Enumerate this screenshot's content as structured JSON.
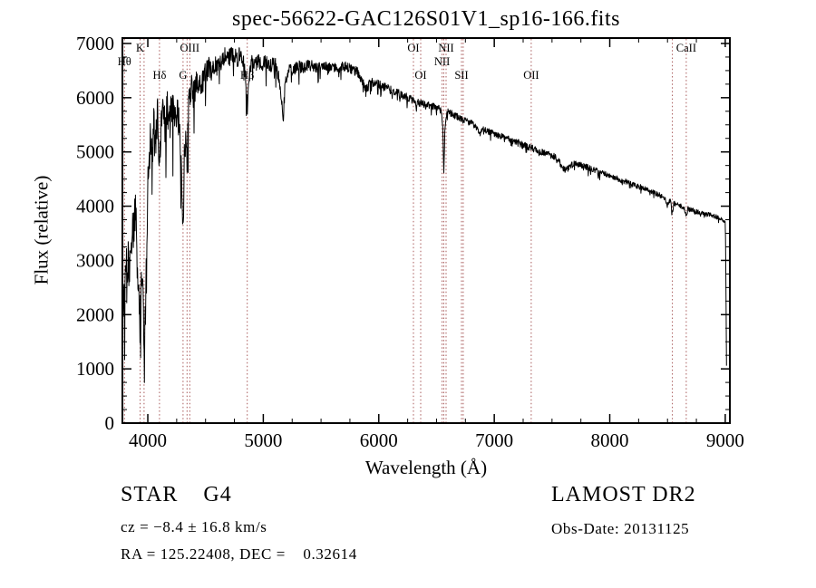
{
  "chart_data": {
    "type": "line",
    "title": "spec-56622-GAC126S01V1_sp16-166.fits",
    "xlabel": "Wavelength (Å)",
    "ylabel": "Flux (relative)",
    "xlim": [
      3780,
      9040
    ],
    "ylim": [
      0,
      7100
    ],
    "xticks": [
      4000,
      5000,
      6000,
      7000,
      8000,
      9000
    ],
    "yticks": [
      0,
      1000,
      2000,
      3000,
      4000,
      5000,
      6000,
      7000
    ],
    "grid": false,
    "colors": {
      "trace": "#000000",
      "marker_line": "#a85a5a",
      "frame": "#000000",
      "background": "#ffffff"
    },
    "noise_seed": 20131125,
    "marker_lines": [
      {
        "wavelength": 3798,
        "label": "Hθ",
        "row": 2
      },
      {
        "wavelength": 3933,
        "label": "K",
        "row": 1
      },
      {
        "wavelength": 3968
      },
      {
        "wavelength": 4101,
        "label": "Hδ",
        "row": 3
      },
      {
        "wavelength": 4305,
        "label": "G",
        "row": 3
      },
      {
        "wavelength": 4340
      },
      {
        "wavelength": 4363,
        "label": "OIII",
        "row": 1
      },
      {
        "wavelength": 4861,
        "label": "Hβ",
        "row": 3
      },
      {
        "wavelength": 6300,
        "label": "OI",
        "row": 1
      },
      {
        "wavelength": 6363,
        "label": "OI",
        "row": 3
      },
      {
        "wavelength": 6548,
        "label": "NII",
        "row": 2
      },
      {
        "wavelength": 6563
      },
      {
        "wavelength": 6583,
        "label": "NII",
        "row": 1
      },
      {
        "wavelength": 6716,
        "label": "SII",
        "row": 3
      },
      {
        "wavelength": 6731
      },
      {
        "wavelength": 7320,
        "label": "OII",
        "row": 3
      },
      {
        "wavelength": 8542
      },
      {
        "wavelength": 8662,
        "label": "CaII",
        "row": 1
      }
    ],
    "envelope_points": [
      [
        3780,
        2300
      ],
      [
        3788,
        2050
      ],
      [
        3796,
        2700
      ],
      [
        3804,
        2300
      ],
      [
        3812,
        3000
      ],
      [
        3820,
        2500
      ],
      [
        3830,
        3200
      ],
      [
        3840,
        2700
      ],
      [
        3850,
        3600
      ],
      [
        3860,
        3100
      ],
      [
        3870,
        3900
      ],
      [
        3880,
        3400
      ],
      [
        3890,
        4000
      ],
      [
        3900,
        3500
      ],
      [
        3910,
        2600
      ],
      [
        3920,
        2950
      ],
      [
        3933,
        1700
      ],
      [
        3944,
        3000
      ],
      [
        3956,
        2700
      ],
      [
        3968,
        1500
      ],
      [
        3978,
        1800
      ],
      [
        3988,
        2900
      ],
      [
        4000,
        4300
      ],
      [
        4012,
        4900
      ],
      [
        4025,
        5300
      ],
      [
        4040,
        5000
      ],
      [
        4055,
        5600
      ],
      [
        4070,
        5200
      ],
      [
        4085,
        5700
      ],
      [
        4101,
        4700
      ],
      [
        4115,
        5600
      ],
      [
        4130,
        5750
      ],
      [
        4150,
        5450
      ],
      [
        4170,
        5800
      ],
      [
        4190,
        5550
      ],
      [
        4210,
        5850
      ],
      [
        4230,
        5550
      ],
      [
        4250,
        5850
      ],
      [
        4270,
        5450
      ],
      [
        4290,
        4650
      ],
      [
        4305,
        3450
      ],
      [
        4318,
        5100
      ],
      [
        4330,
        5250
      ],
      [
        4340,
        4750
      ],
      [
        4352,
        5750
      ],
      [
        4365,
        6050
      ],
      [
        4380,
        6150
      ],
      [
        4400,
        6050
      ],
      [
        4420,
        6250
      ],
      [
        4445,
        6350
      ],
      [
        4470,
        6250
      ],
      [
        4500,
        6450
      ],
      [
        4530,
        6550
      ],
      [
        4560,
        6500
      ],
      [
        4590,
        6600
      ],
      [
        4620,
        6650
      ],
      [
        4650,
        6700
      ],
      [
        4680,
        6800
      ],
      [
        4710,
        6750
      ],
      [
        4740,
        6800
      ],
      [
        4770,
        6700
      ],
      [
        4800,
        6800
      ],
      [
        4825,
        6700
      ],
      [
        4845,
        6450
      ],
      [
        4861,
        5800
      ],
      [
        4878,
        6400
      ],
      [
        4900,
        6700
      ],
      [
        4930,
        6600
      ],
      [
        4960,
        6700
      ],
      [
        4990,
        6600
      ],
      [
        5020,
        6650
      ],
      [
        5060,
        6600
      ],
      [
        5100,
        6650
      ],
      [
        5140,
        6350
      ],
      [
        5172,
        5600
      ],
      [
        5190,
        6300
      ],
      [
        5220,
        6550
      ],
      [
        5260,
        6500
      ],
      [
        5300,
        6600
      ],
      [
        5350,
        6550
      ],
      [
        5400,
        6600
      ],
      [
        5450,
        6550
      ],
      [
        5500,
        6600
      ],
      [
        5550,
        6550
      ],
      [
        5600,
        6580
      ],
      [
        5650,
        6550
      ],
      [
        5700,
        6570
      ],
      [
        5750,
        6540
      ],
      [
        5800,
        6500
      ],
      [
        5840,
        6400
      ],
      [
        5893,
        6150
      ],
      [
        5925,
        6300
      ],
      [
        5960,
        6270
      ],
      [
        6000,
        6240
      ],
      [
        6050,
        6190
      ],
      [
        6100,
        6150
      ],
      [
        6150,
        6100
      ],
      [
        6200,
        6050
      ],
      [
        6250,
        6000
      ],
      [
        6300,
        5940
      ],
      [
        6350,
        5900
      ],
      [
        6400,
        5880
      ],
      [
        6450,
        5850
      ],
      [
        6500,
        5820
      ],
      [
        6540,
        5780
      ],
      [
        6554,
        5500
      ],
      [
        6563,
        4650
      ],
      [
        6574,
        5480
      ],
      [
        6590,
        5750
      ],
      [
        6620,
        5720
      ],
      [
        6660,
        5670
      ],
      [
        6700,
        5630
      ],
      [
        6740,
        5590
      ],
      [
        6780,
        5550
      ],
      [
        6820,
        5510
      ],
      [
        6855,
        5400
      ],
      [
        6875,
        5340
      ],
      [
        6895,
        5430
      ],
      [
        6930,
        5400
      ],
      [
        6970,
        5360
      ],
      [
        7010,
        5330
      ],
      [
        7050,
        5300
      ],
      [
        7100,
        5260
      ],
      [
        7150,
        5220
      ],
      [
        7200,
        5180
      ],
      [
        7250,
        5140
      ],
      [
        7300,
        5090
      ],
      [
        7350,
        5050
      ],
      [
        7400,
        5010
      ],
      [
        7450,
        4970
      ],
      [
        7500,
        4940
      ],
      [
        7550,
        4860
      ],
      [
        7590,
        4720
      ],
      [
        7615,
        4660
      ],
      [
        7645,
        4710
      ],
      [
        7690,
        4790
      ],
      [
        7740,
        4760
      ],
      [
        7790,
        4730
      ],
      [
        7840,
        4690
      ],
      [
        7890,
        4650
      ],
      [
        7940,
        4610
      ],
      [
        7990,
        4570
      ],
      [
        8040,
        4530
      ],
      [
        8090,
        4490
      ],
      [
        8140,
        4450
      ],
      [
        8190,
        4410
      ],
      [
        8240,
        4370
      ],
      [
        8290,
        4330
      ],
      [
        8340,
        4290
      ],
      [
        8390,
        4240
      ],
      [
        8440,
        4190
      ],
      [
        8480,
        4130
      ],
      [
        8498,
        3960
      ],
      [
        8512,
        4110
      ],
      [
        8530,
        4080
      ],
      [
        8542,
        3890
      ],
      [
        8556,
        4060
      ],
      [
        8580,
        4040
      ],
      [
        8610,
        4010
      ],
      [
        8640,
        3980
      ],
      [
        8662,
        3810
      ],
      [
        8676,
        3950
      ],
      [
        8700,
        3930
      ],
      [
        8740,
        3905
      ],
      [
        8780,
        3880
      ],
      [
        8820,
        3860
      ],
      [
        8860,
        3840
      ],
      [
        8900,
        3820
      ],
      [
        8940,
        3795
      ],
      [
        8970,
        3765
      ],
      [
        9000,
        3700
      ],
      [
        9004,
        3150
      ],
      [
        9008,
        2000
      ],
      [
        9012,
        750
      ]
    ],
    "noise_profile": [
      [
        3780,
        430
      ],
      [
        3940,
        420
      ],
      [
        3990,
        400
      ],
      [
        4050,
        380
      ],
      [
        4300,
        340
      ],
      [
        4420,
        240
      ],
      [
        4600,
        180
      ],
      [
        4900,
        150
      ],
      [
        5100,
        130
      ],
      [
        5400,
        110
      ],
      [
        5700,
        100
      ],
      [
        6000,
        85
      ],
      [
        6300,
        72
      ],
      [
        6600,
        62
      ],
      [
        7000,
        56
      ],
      [
        7550,
        62
      ],
      [
        7700,
        55
      ],
      [
        8200,
        52
      ],
      [
        8700,
        48
      ],
      [
        8950,
        42
      ],
      [
        8995,
        25
      ],
      [
        9001,
        12
      ],
      [
        9012,
        8
      ]
    ]
  },
  "footer": {
    "class_label": "STAR    G4",
    "survey": "LAMOST DR2",
    "cz": "cz = −8.4 ± 16.8 km/s",
    "obs_date": "Obs-Date: 20131125",
    "radec": "RA = 125.22408, DEC =    0.32614"
  }
}
